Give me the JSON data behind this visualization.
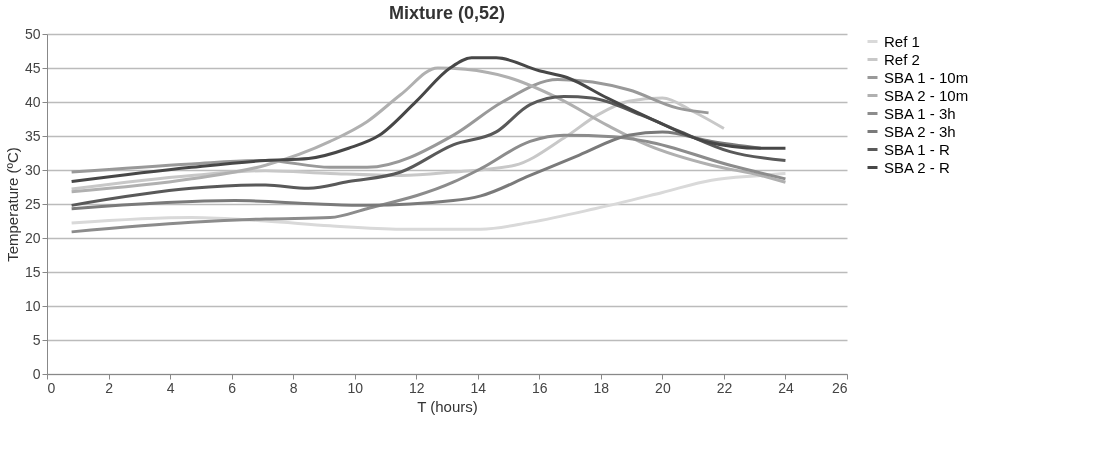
{
  "chart_data": {
    "type": "line",
    "title": "Mixture (0,52)",
    "xlabel": "T (hours)",
    "ylabel": "Temperature (ºC)",
    "xlim": [
      0,
      26
    ],
    "xticks": [
      0,
      2,
      4,
      6,
      8,
      10,
      12,
      14,
      16,
      18,
      20,
      22,
      24,
      26
    ],
    "ylim": [
      0,
      50
    ],
    "yticks": [
      0,
      5,
      10,
      15,
      20,
      25,
      30,
      35,
      40,
      45,
      50
    ],
    "grid": "y",
    "legend": "right",
    "line_style": "solid",
    "series": [
      {
        "name": "Ref 1",
        "color": "#d9d9d9",
        "x": [
          0.8,
          4.7,
          7.1,
          9.2,
          11.5,
          12.5,
          14.1,
          15.7,
          17.8,
          20,
          21.6,
          23.2,
          24
        ],
        "values": [
          22.2,
          23,
          22.5,
          21.8,
          21.3,
          21.3,
          21.3,
          22.3,
          24.3,
          26.7,
          28.5,
          29.2,
          29.5
        ]
      },
      {
        "name": "Ref 2",
        "color": "#c8c8c8",
        "x": [
          0.8,
          4.7,
          7.1,
          9.2,
          11.5,
          13.2,
          15.2,
          16.8,
          17.9,
          18.9,
          20,
          21,
          22
        ],
        "values": [
          27.2,
          29.2,
          29.9,
          29.5,
          29.2,
          29.7,
          30.7,
          34.7,
          38.1,
          40.1,
          40.6,
          38.6,
          36.1
        ]
      },
      {
        "name": "SBA 1 - 10m",
        "color": "#999999",
        "x": [
          0.8,
          4.7,
          7.1,
          9.2,
          10.4,
          13.2,
          14.8,
          16.6,
          18.9,
          20.5,
          21.5
        ],
        "values": [
          29.7,
          30.9,
          31.4,
          30.4,
          30.4,
          35.1,
          40,
          43.3,
          41.8,
          39.1,
          38.4
        ]
      },
      {
        "name": "SBA 2 - 10m",
        "color": "#b0b0b0",
        "x": [
          0.8,
          4.7,
          7.1,
          9.2,
          10.4,
          11.5,
          12.7,
          13.6,
          15,
          16.6,
          18.2,
          19.5,
          21.6,
          23.2,
          24
        ],
        "values": [
          26.8,
          28.7,
          30.7,
          34.2,
          37.1,
          41.1,
          45,
          44.8,
          43.6,
          40.6,
          36.6,
          33.7,
          30.7,
          29.2,
          28.2
        ]
      },
      {
        "name": "SBA 1 - 3h",
        "color": "#8c8c8c",
        "x": [
          0.8,
          4.7,
          7.1,
          9.2,
          10.4,
          13.2,
          14.1,
          15.7,
          16.8,
          18.4,
          19.5,
          22.2,
          24
        ],
        "values": [
          20.9,
          22.3,
          22.8,
          23,
          24.3,
          28.2,
          30.2,
          34.2,
          35.1,
          34.9,
          34.2,
          30.7,
          28.7
        ]
      },
      {
        "name": "SBA 2 - 3h",
        "color": "#7a7a7a",
        "x": [
          0.8,
          6.1,
          8.8,
          10.4,
          13.2,
          14.1,
          15.7,
          17.3,
          18.9,
          20,
          21.6,
          23.2
        ],
        "values": [
          24.3,
          25.5,
          25,
          24.8,
          25.5,
          26.2,
          29.2,
          32.2,
          35.1,
          35.6,
          34.2,
          33.2
        ]
      },
      {
        "name": "SBA 1 - R",
        "color": "#595959",
        "x": [
          0.8,
          4.7,
          7.1,
          8.5,
          9.8,
          11.5,
          13.2,
          14.6,
          15.7,
          16.8,
          17.7,
          19.3,
          20.6,
          22.2,
          24
        ],
        "values": [
          24.8,
          27.3,
          27.8,
          27.3,
          28.3,
          29.7,
          33.7,
          35.6,
          39.6,
          40.8,
          40.6,
          38.1,
          35.6,
          32.7,
          31.4
        ]
      },
      {
        "name": "SBA 2 - R",
        "color": "#474747",
        "x": [
          0.8,
          4.7,
          7.1,
          8.5,
          9.8,
          10.8,
          12,
          13.1,
          13.8,
          14.6,
          16,
          16.9,
          18.2,
          19.6,
          21.4,
          23.2,
          24
        ],
        "values": [
          28.3,
          30.4,
          31.4,
          31.7,
          33.2,
          35.1,
          40.1,
          45,
          46.5,
          46.5,
          44.6,
          43.6,
          40.6,
          37.6,
          34.2,
          33.2,
          33.2
        ]
      }
    ]
  }
}
